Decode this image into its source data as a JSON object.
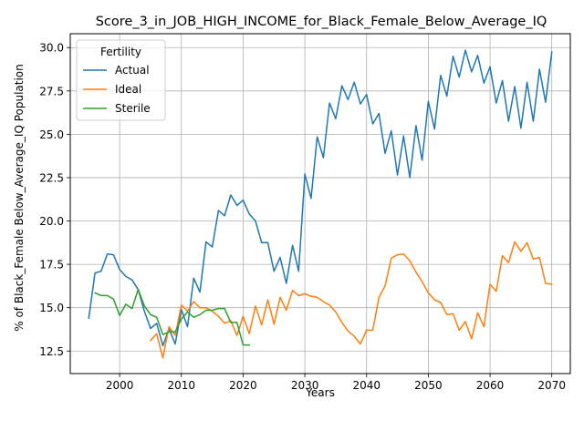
{
  "chart_data": {
    "type": "line",
    "title": "Score_3_in_JOB_HIGH_INCOME_for_Black_Female_Below_Average_IQ",
    "xlabel": "Years",
    "ylabel": "% of Black_Female Below_Average_IQ Population",
    "xlim": [
      1992,
      2073
    ],
    "ylim": [
      11.2,
      30.8
    ],
    "x_ticks": [
      2000,
      2010,
      2020,
      2030,
      2040,
      2050,
      2060,
      2070
    ],
    "y_ticks": [
      12.5,
      15.0,
      17.5,
      20.0,
      22.5,
      25.0,
      27.5,
      30.0
    ],
    "x_tick_labels": [
      "2000",
      "2010",
      "2020",
      "2030",
      "2040",
      "2050",
      "2060",
      "2070"
    ],
    "y_tick_labels": [
      "12.5",
      "15.0",
      "17.5",
      "20.0",
      "22.5",
      "25.0",
      "27.5",
      "30.0"
    ],
    "grid": true,
    "legend": {
      "title": "Fertility",
      "position": "top-left"
    },
    "series": [
      {
        "name": "Actual",
        "color": "#1f77b4",
        "x": [
          1995,
          1996,
          1997,
          1998,
          1999,
          2000,
          2001,
          2002,
          2003,
          2004,
          2005,
          2006,
          2007,
          2008,
          2009,
          2010,
          2011,
          2012,
          2013,
          2014,
          2015,
          2016,
          2017,
          2018,
          2019,
          2020,
          2021,
          2022,
          2023,
          2024,
          2025,
          2026,
          2027,
          2028,
          2029,
          2030,
          2031,
          2032,
          2033,
          2034,
          2035,
          2036,
          2037,
          2038,
          2039,
          2040,
          2041,
          2042,
          2043,
          2044,
          2045,
          2046,
          2047,
          2048,
          2049,
          2050,
          2051,
          2052,
          2053,
          2054,
          2055,
          2056,
          2057,
          2058,
          2059,
          2060,
          2061,
          2062,
          2063,
          2064,
          2065,
          2066,
          2067,
          2068,
          2069,
          2070
        ],
        "y": [
          14.4,
          17.0,
          17.1,
          18.1,
          18.05,
          17.2,
          16.8,
          16.6,
          16.05,
          14.8,
          13.8,
          14.1,
          12.8,
          13.8,
          12.9,
          14.9,
          13.9,
          16.7,
          15.9,
          18.8,
          18.5,
          20.6,
          20.3,
          21.5,
          20.9,
          21.2,
          20.4,
          20.0,
          18.75,
          18.75,
          17.1,
          17.9,
          16.4,
          18.6,
          17.1,
          22.7,
          21.3,
          24.85,
          23.65,
          26.8,
          25.9,
          27.8,
          27.0,
          28.0,
          26.75,
          27.3,
          25.6,
          26.2,
          23.9,
          25.2,
          22.65,
          24.9,
          22.5,
          25.5,
          23.5,
          26.9,
          25.3,
          28.4,
          27.2,
          29.5,
          28.3,
          29.85,
          28.6,
          29.55,
          27.95,
          28.9,
          26.8,
          28.1,
          25.75,
          27.75,
          25.35,
          28.0,
          25.75,
          28.75,
          26.85,
          29.75
        ]
      },
      {
        "name": "Ideal",
        "color": "#ff7f0e",
        "x": [
          2005,
          2006,
          2007,
          2008,
          2009,
          2010,
          2011,
          2012,
          2013,
          2014,
          2015,
          2016,
          2017,
          2018,
          2019,
          2020,
          2021,
          2022,
          2023,
          2024,
          2025,
          2026,
          2027,
          2028,
          2029,
          2030,
          2031,
          2032,
          2033,
          2034,
          2035,
          2036,
          2037,
          2038,
          2039,
          2040,
          2041,
          2042,
          2043,
          2044,
          2045,
          2046,
          2047,
          2048,
          2049,
          2050,
          2051,
          2052,
          2053,
          2054,
          2055,
          2056,
          2057,
          2058,
          2059,
          2060,
          2061,
          2062,
          2063,
          2064,
          2065,
          2066,
          2067,
          2068,
          2069,
          2070
        ],
        "y": [
          13.1,
          13.5,
          12.1,
          13.9,
          13.4,
          15.15,
          14.8,
          15.35,
          15.0,
          15.0,
          14.8,
          14.5,
          14.1,
          14.25,
          13.4,
          14.5,
          13.5,
          15.1,
          14.0,
          15.45,
          14.05,
          15.6,
          14.85,
          16.0,
          15.7,
          15.8,
          15.65,
          15.6,
          15.35,
          15.15,
          14.75,
          14.15,
          13.65,
          13.35,
          12.9,
          13.7,
          13.7,
          15.6,
          16.25,
          17.85,
          18.05,
          18.1,
          17.7,
          17.05,
          16.5,
          15.85,
          15.45,
          15.3,
          14.6,
          14.65,
          13.7,
          14.2,
          13.2,
          14.7,
          13.9,
          16.35,
          15.95,
          18.0,
          17.6,
          18.8,
          18.25,
          18.75,
          17.8,
          17.9,
          16.4,
          16.35
        ]
      },
      {
        "name": "Sterile",
        "color": "#2ca02c",
        "x": [
          1996,
          1997,
          1998,
          1999,
          2000,
          2001,
          2002,
          2003,
          2004,
          2005,
          2006,
          2007,
          2008,
          2009,
          2010,
          2011,
          2012,
          2013,
          2014,
          2015,
          2016,
          2017,
          2018,
          2019,
          2020,
          2021
        ],
        "y": [
          15.85,
          15.7,
          15.7,
          15.5,
          14.55,
          15.2,
          14.95,
          16.05,
          15.1,
          14.6,
          14.45,
          13.45,
          13.6,
          13.6,
          14.35,
          14.75,
          14.45,
          14.6,
          14.85,
          14.85,
          14.95,
          14.95,
          14.15,
          14.15,
          12.85,
          12.85
        ]
      }
    ]
  }
}
